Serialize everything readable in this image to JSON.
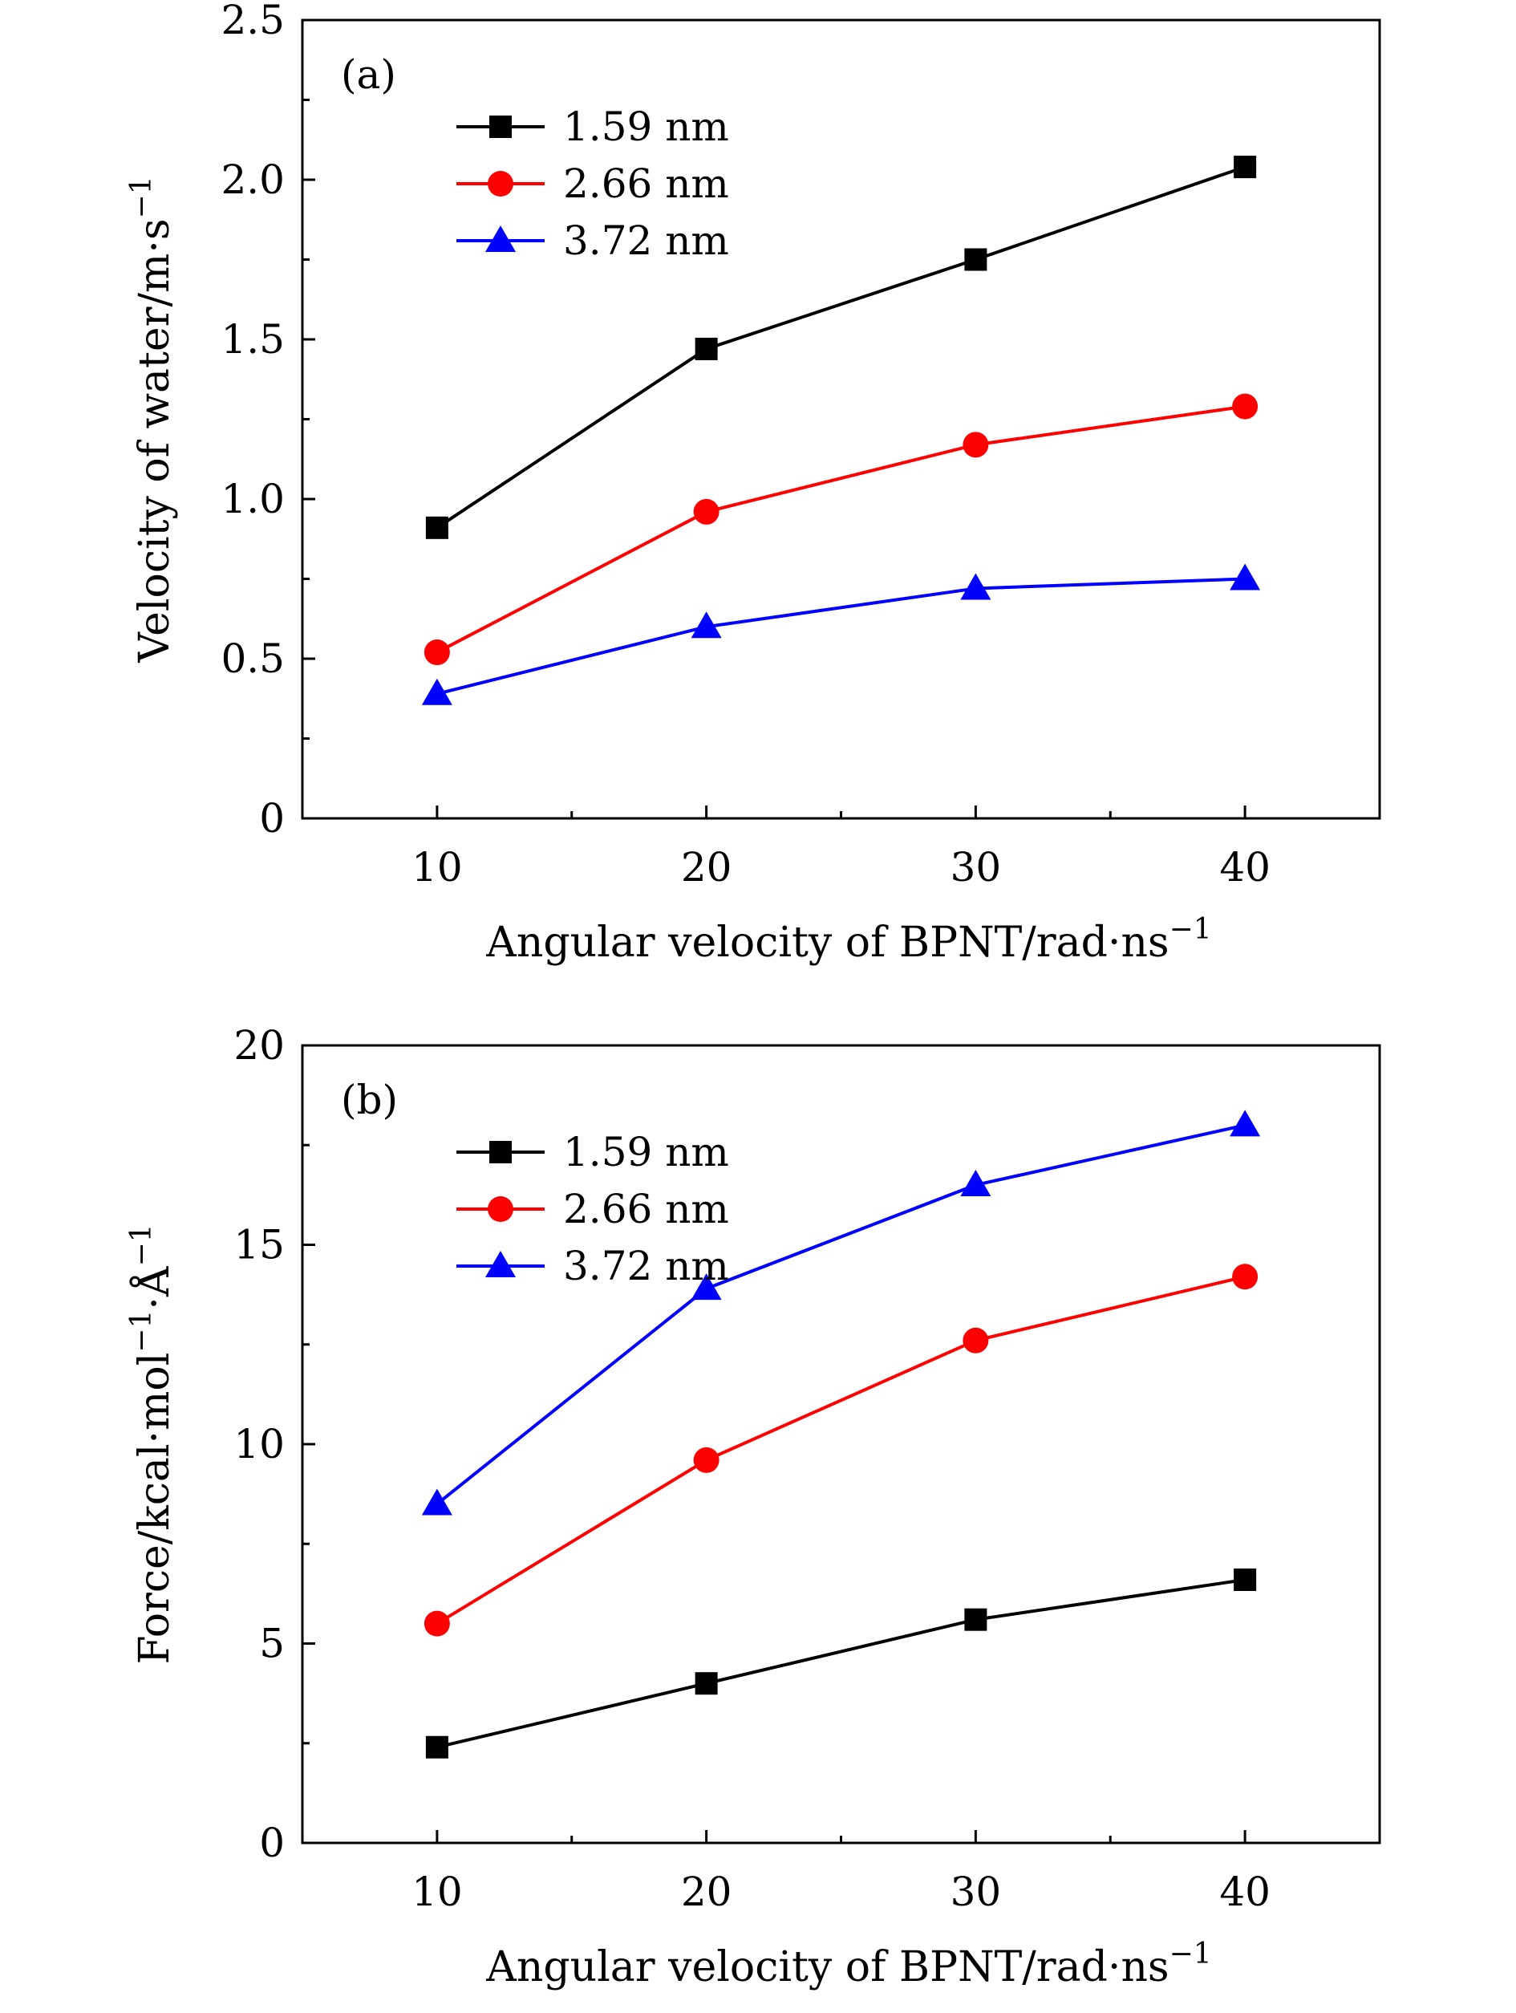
{
  "colors": {
    "black": "#000000",
    "red": "#ff0000",
    "blue": "#0000ff"
  },
  "chart_data": [
    {
      "type": "line",
      "panel_label": "(a)",
      "xlabel": "Angular velocity of BPNT/rad·ns",
      "xlabel_sup": "−1",
      "ylabel": "Velocity of water/m·s",
      "ylabel_sup": "−1",
      "x": [
        10,
        20,
        30,
        40
      ],
      "xlim": [
        5,
        45
      ],
      "ylim": [
        0,
        2.5
      ],
      "xticks": [
        10,
        20,
        30,
        40
      ],
      "xtick_labels": [
        "10",
        "20",
        "30",
        "40"
      ],
      "yticks": [
        0,
        0.5,
        1.0,
        1.5,
        2.0,
        2.5
      ],
      "ytick_labels": [
        "0",
        "0.5",
        "1.0",
        "1.5",
        "2.0",
        "2.5"
      ],
      "legend_position": "top-left",
      "series": [
        {
          "name": "1.59 nm",
          "color": "#000000",
          "marker": "square",
          "values": [
            0.91,
            1.47,
            1.75,
            2.04
          ]
        },
        {
          "name": "2.66 nm",
          "color": "#ff0000",
          "marker": "circle",
          "values": [
            0.52,
            0.96,
            1.17,
            1.29
          ]
        },
        {
          "name": "3.72 nm",
          "color": "#0000ff",
          "marker": "triangle",
          "values": [
            0.39,
            0.6,
            0.72,
            0.75
          ]
        }
      ]
    },
    {
      "type": "line",
      "panel_label": "(b)",
      "xlabel": "Angular velocity of BPNT/rad·ns",
      "xlabel_sup": "−1",
      "ylabel": "Force/kcal·mol",
      "ylabel_sup": "−1",
      "ylabel_tail": "·Å",
      "ylabel_sup2": "−1",
      "x": [
        10,
        20,
        30,
        40
      ],
      "xlim": [
        5,
        45
      ],
      "ylim": [
        0,
        20
      ],
      "xticks": [
        10,
        20,
        30,
        40
      ],
      "xtick_labels": [
        "10",
        "20",
        "30",
        "40"
      ],
      "yticks": [
        0,
        5,
        10,
        15,
        20
      ],
      "ytick_labels": [
        "0",
        "5",
        "10",
        "15",
        "20"
      ],
      "legend_position": "top-left",
      "series": [
        {
          "name": "1.59 nm",
          "color": "#000000",
          "marker": "square",
          "values": [
            2.4,
            4.0,
            5.6,
            6.6
          ]
        },
        {
          "name": "2.66 nm",
          "color": "#ff0000",
          "marker": "circle",
          "values": [
            5.5,
            9.6,
            12.6,
            14.2
          ]
        },
        {
          "name": "3.72 nm",
          "color": "#0000ff",
          "marker": "triangle",
          "values": [
            8.5,
            13.9,
            16.5,
            18.0
          ]
        }
      ]
    }
  ]
}
